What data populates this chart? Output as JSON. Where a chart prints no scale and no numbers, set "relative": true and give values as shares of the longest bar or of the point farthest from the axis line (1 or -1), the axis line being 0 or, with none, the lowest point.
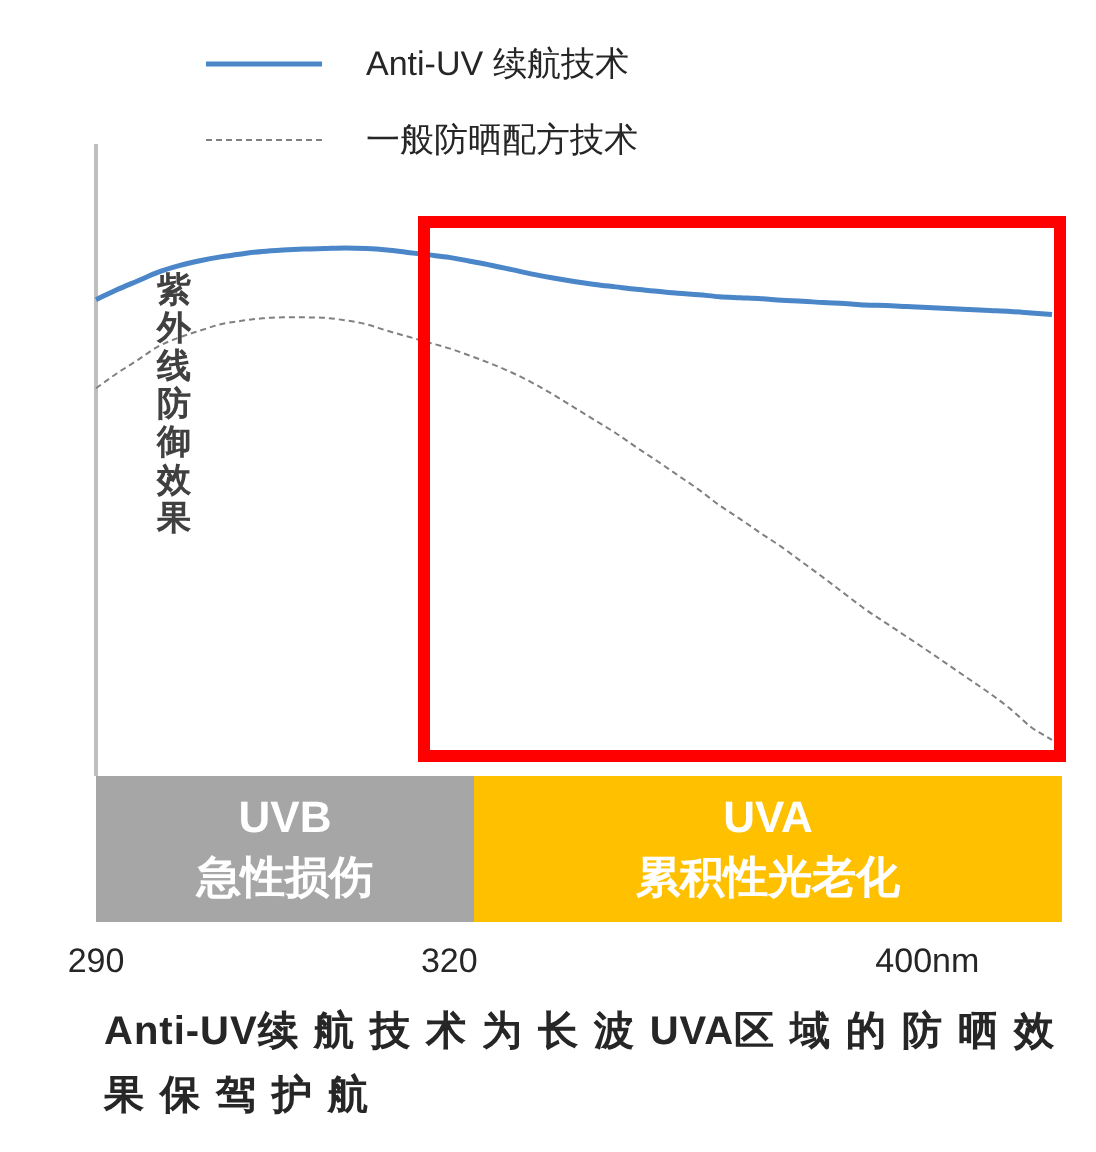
{
  "chart_data": {
    "type": "line",
    "title": "Anti-UV续航技术为长波UVA区域的防晒效果保驾护航",
    "ylabel": "紫外线防御效果",
    "relative": true,
    "categories": [
      "290",
      null,
      null,
      null,
      null,
      null,
      null,
      null,
      null,
      null,
      null,
      null,
      null,
      null,
      null,
      null,
      null,
      "320",
      null,
      null,
      null,
      null,
      null,
      null,
      null,
      null,
      null,
      null,
      null,
      null,
      null,
      null,
      null,
      null,
      null,
      null,
      null,
      null,
      null,
      null,
      "400nm",
      null,
      null,
      null,
      null,
      null,
      null
    ],
    "series": [
      {
        "name": "Anti-UV 续航技术",
        "color": "#4a86c8",
        "line_style": "solid",
        "values": [
          0.895,
          0.915,
          0.933,
          0.951,
          0.964,
          0.974,
          0.982,
          0.988,
          0.993,
          0.996,
          0.998,
          0.999,
          1,
          0.999,
          0.996,
          0.991,
          0.986,
          0.981,
          0.973,
          0.965,
          0.956,
          0.947,
          0.939,
          0.932,
          0.926,
          0.921,
          0.916,
          0.912,
          0.908,
          0.905,
          0.901,
          0.899,
          0.897,
          0.894,
          0.892,
          0.889,
          0.887,
          0.884,
          0.883,
          0.881,
          0.879,
          0.877,
          0.875,
          0.873,
          0.871,
          0.868,
          0.865
        ]
      },
      {
        "name": "一般防晒配方技术",
        "color": "#808080",
        "line_style": "dashed",
        "values": [
          0.715,
          0.745,
          0.772,
          0.8,
          0.818,
          0.832,
          0.845,
          0.852,
          0.857,
          0.859,
          0.859,
          0.858,
          0.853,
          0.845,
          0.832,
          0.82,
          0.808,
          0.796,
          0.781,
          0.765,
          0.747,
          0.726,
          0.702,
          0.676,
          0.65,
          0.624,
          0.595,
          0.567,
          0.538,
          0.509,
          0.477,
          0.449,
          0.42,
          0.392,
          0.361,
          0.33,
          0.298,
          0.266,
          0.238,
          0.21,
          0.182,
          0.153,
          0.124,
          0.095,
          0.063,
          0.026,
          0
        ]
      }
    ],
    "annotations": [
      "UVB\n急性损伤",
      "UVA\n累积性光老化"
    ],
    "legend": "top",
    "marker": "none",
    "grid": false
  }
}
